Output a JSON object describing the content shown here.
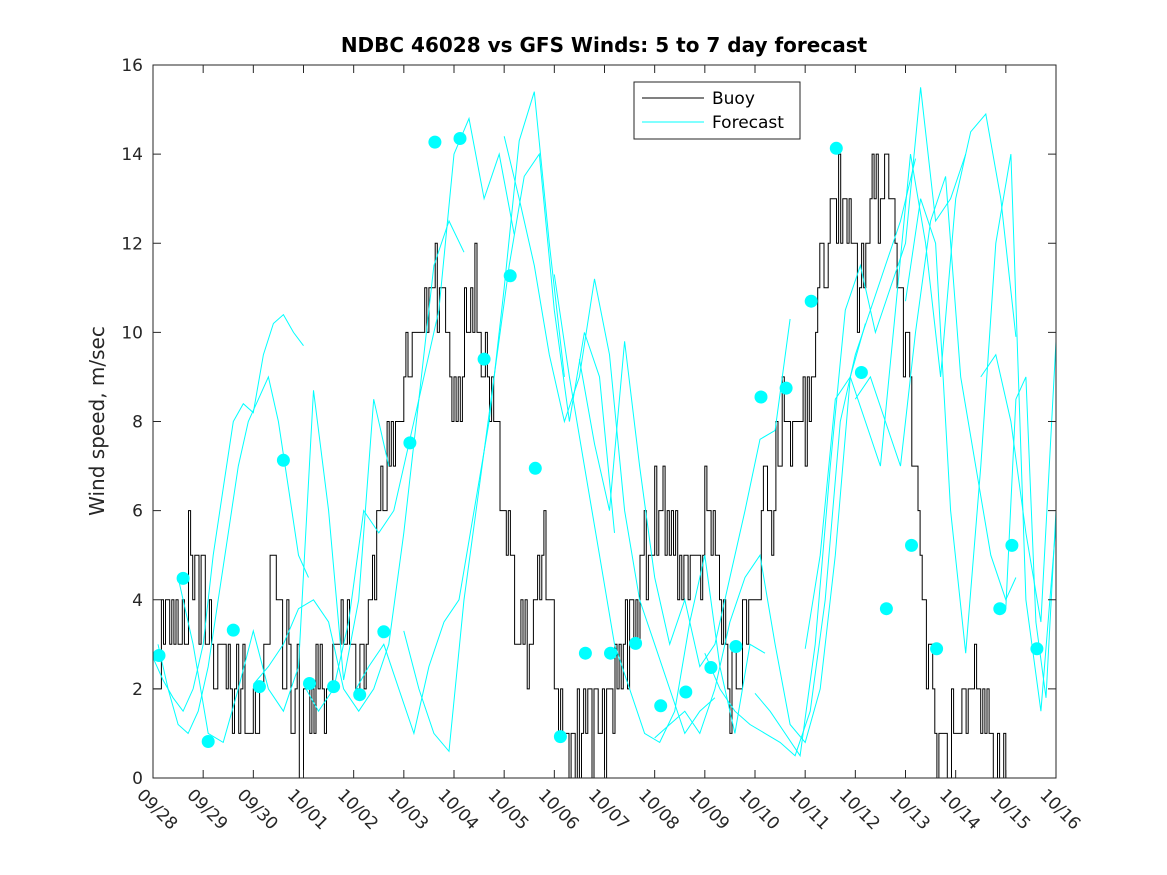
{
  "chart_data": {
    "type": "line",
    "title": "NDBC 46028 vs GFS Winds: 5 to 7 day forecast",
    "xlabel": "",
    "ylabel": "Wind speed, m/sec",
    "xlim": [
      0,
      18
    ],
    "ylim": [
      0,
      16
    ],
    "y_ticks": [
      0,
      2,
      4,
      6,
      8,
      10,
      12,
      14,
      16
    ],
    "x_tick_labels": [
      "09/28",
      "09/29",
      "09/30",
      "10/01",
      "10/02",
      "10/03",
      "10/04",
      "10/05",
      "10/06",
      "10/07",
      "10/08",
      "10/09",
      "10/10",
      "10/11",
      "10/12",
      "10/13",
      "10/14",
      "10/15",
      "10/16"
    ],
    "legend": {
      "position": "top-right",
      "entries": [
        "Buoy",
        "Forecast"
      ]
    },
    "colors": {
      "buoy": "#000000",
      "forecast": "#00ffff",
      "axis": "#262626"
    },
    "buoy_anchors": {
      "name": "Buoy",
      "x": [
        0,
        0.1,
        0.3,
        0.5,
        0.7,
        1.0,
        1.3,
        1.6,
        1.8,
        2.0,
        2.2,
        2.4,
        2.6,
        2.8,
        3.0,
        3.2,
        3.4,
        3.6,
        3.8,
        4.0,
        4.2,
        4.4,
        4.6,
        4.8,
        5.0,
        5.2,
        5.4,
        5.6,
        5.8,
        6.0,
        6.2,
        6.4,
        6.6,
        6.8,
        7.0,
        7.2,
        7.4,
        7.6,
        7.8,
        8.0,
        8.2,
        8.4,
        8.6,
        8.8,
        9.0,
        9.2,
        9.4,
        9.6,
        9.8,
        10.0,
        10.2,
        10.4,
        10.6,
        10.8,
        11.0,
        11.2,
        11.4,
        11.6,
        11.8,
        12.0,
        12.2,
        12.4,
        12.6,
        12.8,
        13.0,
        13.2,
        13.4,
        13.6,
        13.8,
        14.0,
        14.2,
        14.4,
        14.6,
        14.8,
        15.0,
        15.2,
        15.4,
        15.6,
        15.8,
        15.9,
        16.0,
        16.2,
        16.4,
        16.6,
        16.8,
        17.0
      ],
      "y": [
        3,
        2.5,
        4,
        3,
        4.5,
        4,
        2.5,
        1.5,
        2,
        1,
        3,
        5,
        3,
        2,
        1,
        2,
        1.5,
        2.5,
        3,
        2,
        3,
        5,
        7,
        8,
        8.5,
        9,
        10,
        11,
        10,
        9,
        9.5,
        11,
        10,
        8,
        6,
        4,
        3,
        4.5,
        5,
        3,
        1,
        0.5,
        1.5,
        1,
        1,
        2,
        3,
        4,
        5,
        5.5,
        6,
        5,
        4.5,
        4,
        6,
        5,
        3,
        2,
        3,
        4,
        6,
        6.5,
        8,
        8,
        8.5,
        10,
        12,
        13,
        12,
        11,
        12,
        13,
        13.5,
        12,
        10,
        7,
        3,
        1,
        0.5,
        0.5,
        0.5,
        1,
        2,
        1,
        0.5,
        0.5
      ]
    },
    "forecast_segments": [
      {
        "x": [
          0,
          0.2,
          0.4,
          0.6,
          0.8,
          1.0,
          1.2,
          1.4,
          1.6,
          1.8,
          2.0,
          2.2,
          2.4,
          2.6,
          2.8,
          3.0
        ],
        "y": [
          2.7,
          2.2,
          1.8,
          1.5,
          2.0,
          3.0,
          5.0,
          6.5,
          8.0,
          8.4,
          8.2,
          9.5,
          10.2,
          10.4,
          10.0,
          9.7
        ]
      },
      {
        "x": [
          0.1,
          0.3,
          0.5,
          0.7,
          0.9,
          1.1,
          1.3,
          1.5,
          1.7,
          1.9,
          2.1,
          2.3,
          2.5,
          2.7,
          2.9,
          3.1
        ],
        "y": [
          3.0,
          2.0,
          1.2,
          1.0,
          1.5,
          2.5,
          4.0,
          5.5,
          7.0,
          8.0,
          8.5,
          9.0,
          8.0,
          6.5,
          5.0,
          4.5
        ]
      },
      {
        "x": [
          0.5,
          0.8,
          1.1,
          1.4,
          1.7,
          2.0,
          2.3,
          2.6,
          2.9,
          3.2,
          3.5,
          3.8,
          4.1,
          4.4,
          4.7
        ],
        "y": [
          4.5,
          3.0,
          1.0,
          0.8,
          2.0,
          3.3,
          2.0,
          1.5,
          2.5,
          8.7,
          6.0,
          2.2,
          4.0,
          8.5,
          7.0
        ]
      },
      {
        "x": [
          2.0,
          2.3,
          2.6,
          2.9,
          3.2,
          3.5,
          3.8,
          4.1,
          4.4,
          4.7,
          5.0,
          5.3,
          5.6,
          5.9,
          6.2
        ],
        "y": [
          2.1,
          2.5,
          3.0,
          3.8,
          4.0,
          3.5,
          2.0,
          1.5,
          2.0,
          3.0,
          5.5,
          8.5,
          11.5,
          12.5,
          11.8
        ]
      },
      {
        "x": [
          3.0,
          3.3,
          3.6,
          3.9,
          4.2,
          4.5,
          4.8,
          5.1,
          5.4,
          5.7,
          6.0,
          6.3,
          6.6,
          6.9,
          7.2
        ],
        "y": [
          2.1,
          1.5,
          2.0,
          3.5,
          6.0,
          5.5,
          6.0,
          7.5,
          9.0,
          10.5,
          14.0,
          14.8,
          13.0,
          14.0,
          12.2
        ]
      },
      {
        "x": [
          4.0,
          4.3,
          4.6,
          4.9,
          5.2,
          5.5,
          5.8,
          6.1,
          6.4,
          6.7,
          7.0,
          7.3,
          7.6,
          7.9,
          8.2
        ],
        "y": [
          1.9,
          2.5,
          3.0,
          2.0,
          1.0,
          2.5,
          3.5,
          4.0,
          6.0,
          8.0,
          11.0,
          14.3,
          15.4,
          12.0,
          9.0
        ]
      },
      {
        "x": [
          5.0,
          5.3,
          5.6,
          5.9,
          6.2,
          6.5,
          6.8,
          7.1,
          7.4,
          7.7,
          8.0,
          8.3,
          8.6,
          8.9,
          9.2
        ],
        "y": [
          3.3,
          2.0,
          1.0,
          0.6,
          4.0,
          6.5,
          9.0,
          11.5,
          13.5,
          14.0,
          10.5,
          8.0,
          10.0,
          9.0,
          5.5
        ]
      },
      {
        "x": [
          7.0,
          7.3,
          7.6,
          7.9,
          8.2,
          8.5,
          8.8,
          9.1,
          9.4,
          9.7,
          10.0,
          10.3,
          10.6,
          10.9,
          11.2
        ],
        "y": [
          14.4,
          13.0,
          11.5,
          9.5,
          8.0,
          9.0,
          11.2,
          9.5,
          6.0,
          4.0,
          3.0,
          2.0,
          1.0,
          1.5,
          1.8
        ]
      },
      {
        "x": [
          8.0,
          8.3,
          8.6,
          8.9,
          9.2,
          9.5,
          9.8,
          10.1,
          10.4,
          10.7,
          11.0,
          11.3,
          11.6,
          11.9,
          12.2
        ],
        "y": [
          11.3,
          9.0,
          7.0,
          5.0,
          3.0,
          2.0,
          1.0,
          0.8,
          1.5,
          3.5,
          5.0,
          2.5,
          1.0,
          3.0,
          2.8
        ]
      },
      {
        "x": [
          8.5,
          8.8,
          9.1,
          9.4,
          9.7,
          10.0,
          10.3,
          10.6,
          10.9,
          11.2,
          11.5,
          11.8,
          12.1,
          12.4,
          12.7
        ],
        "y": [
          9.4,
          7.5,
          6.0,
          9.8,
          7.0,
          4.5,
          3.0,
          4.0,
          2.5,
          3.0,
          4.5,
          6.0,
          7.6,
          7.8,
          10.3
        ]
      },
      {
        "x": [
          10.0,
          10.3,
          10.6,
          10.9,
          11.2,
          11.5,
          11.8,
          12.1,
          12.4,
          12.7,
          13.0,
          13.3,
          13.6,
          13.9,
          14.2
        ],
        "y": [
          0.9,
          1.2,
          1.5,
          1.0,
          2.0,
          3.5,
          4.5,
          5.0,
          3.0,
          1.2,
          0.8,
          2.0,
          5.0,
          9.0,
          10.2
        ]
      },
      {
        "x": [
          11.0,
          11.3,
          11.6,
          11.9,
          12.2,
          12.5,
          12.8,
          13.1,
          13.4,
          13.7,
          14.0,
          14.3,
          14.6,
          14.9,
          15.2
        ],
        "y": [
          2.8,
          2.0,
          1.5,
          1.2,
          1.0,
          0.8,
          0.5,
          1.5,
          4.0,
          8.0,
          9.5,
          10.5,
          11.5,
          12.5,
          13.9
        ]
      },
      {
        "x": [
          12.0,
          12.3,
          12.6,
          12.9,
          13.2,
          13.5,
          13.8,
          14.1,
          14.4,
          14.7,
          15.0,
          15.3,
          15.6,
          15.9,
          16.2
        ],
        "y": [
          1.9,
          1.5,
          1.0,
          0.5,
          3.0,
          7.0,
          10.5,
          11.5,
          10.0,
          11.0,
          12.0,
          15.5,
          12.5,
          13.0,
          14.0
        ]
      },
      {
        "x": [
          13.0,
          13.3,
          13.6,
          13.9,
          14.2,
          14.5,
          14.8,
          15.1,
          15.4,
          15.7,
          16.0,
          16.3,
          16.6,
          16.9,
          17.2
        ],
        "y": [
          2.9,
          5.0,
          8.5,
          9.0,
          8.0,
          7.0,
          10.5,
          14.0,
          12.0,
          9.0,
          13.0,
          14.5,
          14.9,
          13.0,
          9.9
        ]
      },
      {
        "x": [
          14.0,
          14.3,
          14.6,
          14.9,
          15.2,
          15.5,
          15.8,
          16.1,
          16.4,
          16.7,
          17.0,
          17.2
        ],
        "y": [
          8.5,
          9.0,
          8.0,
          7.0,
          10.0,
          12.5,
          13.5,
          9.0,
          7.0,
          5.0,
          4.0,
          4.5
        ]
      },
      {
        "x": [
          15.0,
          15.3,
          15.6,
          15.9,
          16.2,
          16.5,
          16.8,
          17.1,
          17.4,
          17.7,
          18.0
        ],
        "y": [
          10.7,
          13.0,
          12.0,
          6.0,
          2.8,
          7.0,
          12.0,
          14.0,
          4.0,
          1.5,
          5.7
        ]
      },
      {
        "x": [
          16.5,
          16.8,
          17.1,
          17.4,
          17.7,
          18.0
        ],
        "y": [
          9.0,
          9.5,
          8.0,
          5.5,
          3.5,
          9.8
        ]
      },
      {
        "x": [
          17.0,
          17.2,
          17.4,
          17.6,
          17.8,
          18.0
        ],
        "y": [
          3.8,
          8.5,
          9.0,
          3.5,
          1.8,
          6.0
        ]
      }
    ],
    "forecast_markers": {
      "x": [
        0.12,
        0.6,
        1.1,
        1.6,
        2.12,
        2.6,
        3.12,
        3.6,
        4.12,
        4.6,
        5.12,
        5.62,
        6.12,
        6.6,
        7.12,
        7.62,
        8.12,
        8.62,
        9.12,
        9.62,
        10.12,
        10.62,
        11.12,
        11.62,
        12.12,
        12.62,
        13.12,
        13.62,
        14.12,
        14.62,
        15.12,
        15.62,
        16.88,
        17.12,
        17.62
      ],
      "y": [
        2.75,
        4.48,
        0.82,
        3.32,
        2.05,
        7.13,
        2.12,
        2.05,
        1.87,
        3.28,
        7.52,
        14.27,
        14.35,
        9.4,
        11.27,
        6.95,
        0.93,
        2.8,
        2.8,
        3.02,
        1.62,
        1.93,
        2.48,
        2.95,
        8.55,
        8.75,
        10.7,
        14.13,
        9.1,
        3.8,
        5.22,
        2.9,
        3.8,
        5.22,
        2.9
      ]
    }
  }
}
